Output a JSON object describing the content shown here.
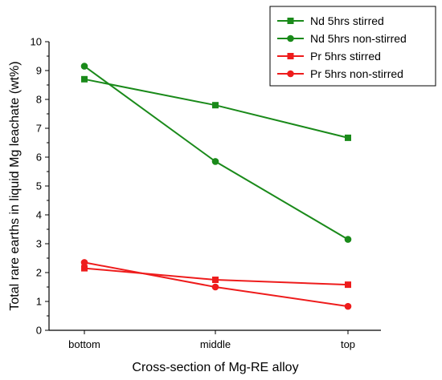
{
  "chart_data": {
    "type": "line",
    "title": "",
    "xlabel": "Cross-section of Mg-RE alloy",
    "ylabel": "Total rare earths in liquid Mg leachate (wt%)",
    "categories": [
      "bottom",
      "middle",
      "top"
    ],
    "ylim": [
      0,
      10
    ],
    "yticks": [
      0,
      1,
      2,
      3,
      4,
      5,
      6,
      7,
      8,
      9,
      10
    ],
    "grid": false,
    "legend_position": "top-right",
    "series": [
      {
        "name": "Nd 5hrs stirred",
        "values": [
          8.7,
          7.8,
          6.67
        ],
        "color": "#1a8a1a",
        "marker": "square"
      },
      {
        "name": "Nd 5hrs non-stirred",
        "values": [
          9.15,
          5.85,
          3.15
        ],
        "color": "#1a8a1a",
        "marker": "circle"
      },
      {
        "name": "Pr 5hrs stirred",
        "values": [
          2.15,
          1.75,
          1.58
        ],
        "color": "#ee1c1c",
        "marker": "square"
      },
      {
        "name": "Pr 5hrs non-stirred",
        "values": [
          2.35,
          1.5,
          0.83
        ],
        "color": "#ee1c1c",
        "marker": "circle"
      }
    ]
  }
}
